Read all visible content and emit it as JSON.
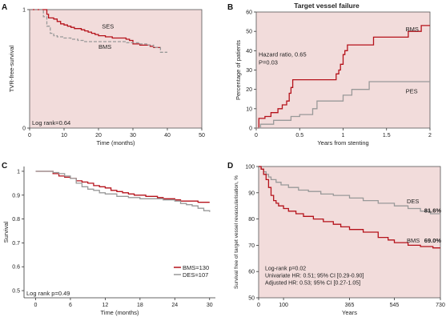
{
  "chart_data": [
    {
      "type": "line",
      "panel_label": "A",
      "title": "",
      "xlabel": "Time (months)",
      "ylabel": "TVR-free-survival",
      "xlim": [
        0,
        50
      ],
      "ylim": [
        0,
        1
      ],
      "xticks": [
        0,
        10,
        20,
        30,
        40,
        50
      ],
      "yticks": [
        {
          "value": 0,
          "label": "0"
        },
        {
          "value": 1,
          "label": "1"
        }
      ],
      "annotation": "Log rank=0.64",
      "series": [
        {
          "name": "SES",
          "color": "#b5121b",
          "dash": false,
          "x": [
            0,
            4,
            5,
            5.5,
            7,
            8,
            9,
            10,
            11,
            12,
            13,
            14,
            15,
            16,
            17,
            18,
            19,
            20,
            22,
            24,
            26,
            28,
            29,
            30,
            32,
            34,
            35,
            36,
            38
          ],
          "y": [
            1,
            1,
            0.96,
            0.93,
            0.92,
            0.9,
            0.88,
            0.87,
            0.86,
            0.85,
            0.84,
            0.84,
            0.83,
            0.82,
            0.81,
            0.8,
            0.79,
            0.78,
            0.77,
            0.76,
            0.76,
            0.75,
            0.74,
            0.71,
            0.7,
            0.7,
            0.69,
            0.68,
            0.68
          ]
        },
        {
          "name": "BMS",
          "color": "#999999",
          "dash": true,
          "x": [
            0,
            3,
            4,
            5,
            6,
            7,
            8,
            10,
            12,
            14,
            16,
            18,
            20,
            24,
            28,
            30,
            32,
            34,
            36,
            38,
            40
          ],
          "y": [
            1,
            1,
            0.94,
            0.86,
            0.8,
            0.78,
            0.77,
            0.76,
            0.75,
            0.74,
            0.73,
            0.73,
            0.73,
            0.73,
            0.72,
            0.72,
            0.71,
            0.7,
            0.68,
            0.64,
            0.64
          ]
        }
      ],
      "colors": {
        "SES": "#b5121b",
        "BMS": "#999999",
        "background": "#f2dcdb"
      }
    },
    {
      "type": "line",
      "panel_label": "B",
      "title": "Target vessel failure",
      "xlabel": "Years from stenting",
      "ylabel": "Percentage of patients",
      "xlim": [
        0,
        2
      ],
      "ylim": [
        0,
        60
      ],
      "xticks": [
        0,
        0.5,
        1,
        1.5,
        2
      ],
      "yticks": [
        0,
        10,
        20,
        30,
        40,
        50,
        60
      ],
      "annotation_lines": [
        "Hazard ratio, 0.65",
        "P=0.03"
      ],
      "series": [
        {
          "name": "BMS",
          "color": "#b5121b",
          "dash": false,
          "x": [
            0,
            0.03,
            0.1,
            0.17,
            0.25,
            0.3,
            0.35,
            0.38,
            0.4,
            0.42,
            0.45,
            0.5,
            0.6,
            0.75,
            0.85,
            0.92,
            0.95,
            0.97,
            1.0,
            1.02,
            1.05,
            1.3,
            1.35,
            1.5,
            1.75,
            1.9,
            2.0
          ],
          "y": [
            0,
            5,
            6,
            8,
            10,
            12,
            14,
            18,
            21,
            25,
            25,
            25,
            25,
            25,
            25,
            28,
            30,
            33,
            38,
            40,
            43,
            43,
            47,
            47,
            50,
            53,
            53
          ]
        },
        {
          "name": "PES",
          "color": "#999999",
          "dash": false,
          "x": [
            0,
            0.05,
            0.2,
            0.4,
            0.5,
            0.65,
            0.7,
            0.95,
            1.0,
            1.1,
            1.25,
            1.3,
            1.5,
            2.0
          ],
          "y": [
            0,
            2,
            4,
            6,
            7,
            10,
            14,
            14,
            17,
            20,
            20,
            24,
            24,
            24
          ]
        }
      ],
      "colors": {
        "BMS": "#b5121b",
        "PES": "#999999",
        "background": "#f2dcdb"
      }
    },
    {
      "type": "line",
      "panel_label": "C",
      "title": "",
      "xlabel": "Time (months)",
      "ylabel": "Survival",
      "xlim": [
        -2,
        31
      ],
      "ylim": [
        0.47,
        1.02
      ],
      "xticks": [
        0,
        6,
        12,
        18,
        24,
        30
      ],
      "yticks": [
        {
          "value": 0.5,
          "label": "0.5"
        },
        {
          "value": 0.6,
          "label": "0.6"
        },
        {
          "value": 0.7,
          "label": "0.7"
        },
        {
          "value": 0.8,
          "label": "0.8"
        },
        {
          "value": 0.9,
          "label": "0.9"
        },
        {
          "value": 1,
          "label": "1"
        }
      ],
      "annotation": "Log rank p=0.49",
      "legend_position": "bottom-right",
      "series": [
        {
          "name": "BMS=130",
          "color": "#b5121b",
          "dash": false,
          "x": [
            0,
            2,
            3,
            4,
            5,
            6,
            7,
            8,
            9,
            10,
            11,
            12,
            13,
            14,
            15,
            16,
            17,
            18,
            19,
            20,
            21,
            22,
            24,
            25,
            26,
            28,
            30
          ],
          "y": [
            1,
            1,
            0.99,
            0.98,
            0.975,
            0.97,
            0.96,
            0.955,
            0.95,
            0.94,
            0.935,
            0.93,
            0.92,
            0.915,
            0.91,
            0.905,
            0.9,
            0.9,
            0.895,
            0.895,
            0.89,
            0.885,
            0.88,
            0.875,
            0.875,
            0.87,
            0.87
          ]
        },
        {
          "name": "DES=107",
          "color": "#999999",
          "dash": false,
          "x": [
            0,
            2,
            3,
            4,
            5,
            6,
            7,
            8,
            9,
            10,
            11,
            12,
            14,
            16,
            18,
            20,
            22,
            24,
            25,
            26,
            27,
            28,
            29,
            30
          ],
          "y": [
            1,
            1,
            0.995,
            0.99,
            0.98,
            0.97,
            0.95,
            0.935,
            0.925,
            0.92,
            0.91,
            0.905,
            0.895,
            0.89,
            0.885,
            0.885,
            0.88,
            0.875,
            0.865,
            0.86,
            0.855,
            0.845,
            0.835,
            0.83
          ]
        }
      ],
      "colors": {
        "BMS=130": "#b5121b",
        "DES=107": "#999999",
        "background": "#ffffff"
      }
    },
    {
      "type": "line",
      "panel_label": "D",
      "title": "",
      "xlabel": "Years",
      "ylabel": "Survival free of target vessel revascularisation, %",
      "xlim": [
        0,
        730
      ],
      "ylim": [
        50,
        100
      ],
      "xticks": [
        {
          "value": 0,
          "label": "0"
        },
        {
          "value": 100,
          "label": "100"
        },
        {
          "value": 365,
          "label": "365"
        },
        {
          "value": 545,
          "label": "545"
        },
        {
          "value": 730,
          "label": "730"
        }
      ],
      "yticks": [
        50,
        60,
        70,
        80,
        90,
        100
      ],
      "annotation_lines": [
        "Log-rank p=0.02",
        "Univariate HR: 0.51; 95% CI [0.29-0.90]",
        "Adjusted HR: 0.53; 95% CI [0.27-1.05]"
      ],
      "series": [
        {
          "name": "DES",
          "value_label": "81.6%",
          "color": "#999999",
          "dash": false,
          "x": [
            0,
            10,
            20,
            30,
            40,
            50,
            70,
            90,
            120,
            160,
            200,
            250,
            300,
            365,
            420,
            480,
            545,
            600,
            650,
            690,
            730
          ],
          "y": [
            100,
            99,
            98,
            97,
            96,
            95,
            94,
            93,
            92,
            91,
            90.5,
            89.5,
            89,
            88,
            87,
            86,
            85,
            84,
            83,
            82,
            82
          ]
        },
        {
          "name": "BMS",
          "value_label": "69.0%",
          "color": "#b5121b",
          "dash": false,
          "x": [
            0,
            10,
            20,
            30,
            40,
            50,
            60,
            70,
            80,
            100,
            120,
            150,
            180,
            220,
            260,
            300,
            330,
            365,
            420,
            480,
            520,
            545,
            600,
            650,
            700,
            730
          ],
          "y": [
            100,
            99,
            97,
            95,
            92,
            89,
            87,
            86,
            85,
            84,
            83,
            82,
            81,
            80,
            79,
            78,
            77,
            76,
            75,
            73,
            72,
            71,
            70,
            69.5,
            69,
            69
          ]
        }
      ],
      "colors": {
        "DES": "#999999",
        "BMS": "#b5121b",
        "background": "#f2dcdb"
      }
    }
  ]
}
